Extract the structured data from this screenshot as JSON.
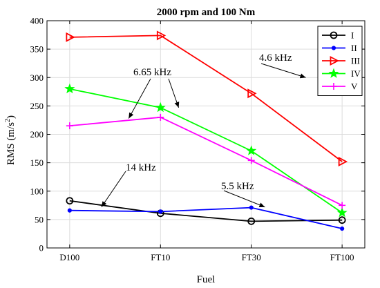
{
  "chart_data": {
    "type": "line",
    "title": "2000 rpm and 100 Nm",
    "xlabel": "Fuel",
    "ylabel_main": "RMS (m/s",
    "ylabel_sup": "2",
    "ylabel_tail": ")",
    "categories": [
      "D100",
      "FT10",
      "FT30",
      "FT100"
    ],
    "ylim": [
      0,
      400
    ],
    "yticks": [
      0,
      50,
      100,
      150,
      200,
      250,
      300,
      350,
      400
    ],
    "grid": true,
    "legend_position": "top-right",
    "series": [
      {
        "name": "I",
        "color": "#000000",
        "marker": "circle",
        "values": [
          83,
          61,
          47,
          49
        ]
      },
      {
        "name": "II",
        "color": "#0000ff",
        "marker": "dot",
        "values": [
          66,
          64,
          71,
          34
        ]
      },
      {
        "name": "III",
        "color": "#ff0000",
        "marker": "triangle",
        "values": [
          371,
          374,
          272,
          152
        ]
      },
      {
        "name": "IV",
        "color": "#00ff00",
        "marker": "star",
        "values": [
          280,
          247,
          171,
          62
        ]
      },
      {
        "name": "V",
        "color": "#ff00ff",
        "marker": "plus",
        "values": [
          215,
          230,
          154,
          75
        ]
      }
    ],
    "annotations": [
      {
        "text": "4.6 kHz",
        "points_to": [
          {
            "x": 2.6,
            "y": 300
          }
        ]
      },
      {
        "text": "6.65 kHz",
        "points_to": [
          {
            "x": 0.65,
            "y": 228
          },
          {
            "x": 1.2,
            "y": 247
          }
        ]
      },
      {
        "text": "14 kHz",
        "points_to": [
          {
            "x": 0.35,
            "y": 72
          }
        ]
      },
      {
        "text": "5.5 kHz",
        "points_to": [
          {
            "x": 2.15,
            "y": 72
          }
        ]
      }
    ]
  }
}
